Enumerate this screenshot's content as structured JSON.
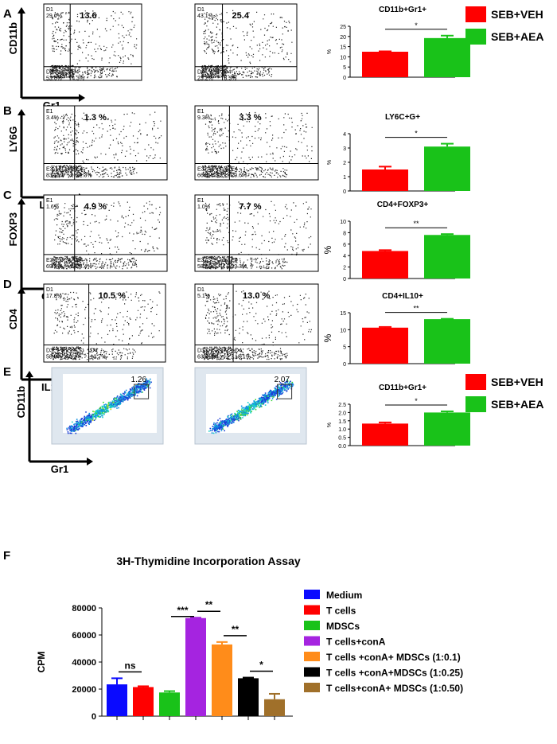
{
  "panel_letters": [
    "A",
    "B",
    "C",
    "D",
    "E",
    "F"
  ],
  "legend_top": [
    {
      "label": "SEB+VEH",
      "color": "#ff0000"
    },
    {
      "label": "SEB+AEA",
      "color": "#19c219"
    }
  ],
  "flow_rows": [
    {
      "row": "A",
      "y_marker": "CD11b",
      "x_marker": "Gr1",
      "plots": [
        {
          "ul": "D1",
          "ul_pct": "29.6%",
          "ur_pct": "13.6",
          "ll": "D3",
          "ll_pct": "53.6%",
          "lr": "D4",
          "lr_pct": "4.3%"
        },
        {
          "ul": "D1",
          "ul_pct": "43.1%",
          "ur_pct": "25.4",
          "ll": "D3",
          "ll_pct": "23.2%",
          "lr": "D4",
          "lr_pct": "8.3%"
        }
      ]
    },
    {
      "row": "B",
      "y_marker": "LY6G",
      "x_marker": "Ly6C",
      "plots": [
        {
          "ul": "E1",
          "ul_pct": "3.4%",
          "ur_pct": "1.3 %",
          "ll": "E3",
          "ll_pct": "83.1%",
          "lr": "E4",
          "lr_pct": "12.3%"
        },
        {
          "ul": "E1",
          "ul_pct": "9.3%",
          "ur_pct": "3.3 %",
          "ll": "E3",
          "ll_pct": "66.8%",
          "lr": "E4",
          "lr_pct": "20.6%"
        }
      ]
    },
    {
      "row": "C",
      "y_marker": "FOXP3",
      "x_marker": "CD4",
      "plots": [
        {
          "ul": "E1",
          "ul_pct": "1.6%",
          "ur_pct": "4.9 %",
          "ll": "E3",
          "ll_pct": "69.9%",
          "lr": "E4",
          "lr_pct": "23.4%"
        },
        {
          "ul": "E1",
          "ul_pct": "1.0%",
          "ur_pct": "7.7 %",
          "ll": "E3",
          "ll_pct": "58.0%",
          "lr": "E4",
          "lr_pct": "33.3%"
        }
      ]
    },
    {
      "row": "D",
      "y_marker": "CD4",
      "x_marker": "IL10",
      "plots": [
        {
          "ul": "D1",
          "ul_pct": "17.8%",
          "ur_pct": "10.5 %",
          "ll": "D3",
          "ll_pct": "58.9%",
          "lr": "D4",
          "lr_pct": "12.7%"
        },
        {
          "ul": "D1",
          "ul_pct": "5.1%",
          "ur_pct": "13.0 %",
          "ll": "D3",
          "ll_pct": "63.6%",
          "lr": "D4",
          "lr_pct": "18.1%"
        }
      ]
    },
    {
      "row": "E",
      "y_marker": "CD11b",
      "x_marker": "Gr1",
      "plots": [
        {
          "gate_value": "1.26"
        },
        {
          "gate_value": "2.07"
        }
      ]
    }
  ],
  "chart_data": [
    {
      "type": "bar",
      "panel": "A",
      "title": "CD11b+Gr1+",
      "ylabel": "%",
      "ylim": [
        0,
        25
      ],
      "yticks": [
        "0",
        "5",
        "10",
        "15",
        "20",
        "25"
      ],
      "categories": [
        "SEB+VEH",
        "SEB+AEA"
      ],
      "values": [
        12.5,
        19.2
      ],
      "errors": [
        0.2,
        1.2
      ],
      "significance": "*"
    },
    {
      "type": "bar",
      "panel": "B",
      "title": "LY6C+G+",
      "ylabel": "%",
      "ylim": [
        0,
        4
      ],
      "yticks": [
        "0",
        "1",
        "2",
        "3",
        "4"
      ],
      "categories": [
        "SEB+VEH",
        "SEB+AEA"
      ],
      "values": [
        1.5,
        3.1
      ],
      "errors": [
        0.2,
        0.2
      ],
      "significance": "*"
    },
    {
      "type": "bar",
      "panel": "C",
      "title": "CD4+FOXP3+",
      "ylabel": "%",
      "ylim": [
        0,
        10
      ],
      "yticks": [
        "0",
        "2",
        "4",
        "6",
        "8",
        "10"
      ],
      "categories": [
        "SEB+VEH",
        "SEB+AEA"
      ],
      "values": [
        4.8,
        7.6
      ],
      "errors": [
        0.15,
        0.15
      ],
      "significance": "**"
    },
    {
      "type": "bar",
      "panel": "D",
      "title": "CD4+IL10+",
      "ylabel": "%",
      "ylim": [
        0,
        15
      ],
      "yticks": [
        "0",
        "5",
        "10",
        "15"
      ],
      "categories": [
        "SEB+VEH",
        "SEB+AEA"
      ],
      "values": [
        10.6,
        13.1
      ],
      "errors": [
        0.2,
        0.1
      ],
      "significance": "**"
    },
    {
      "type": "bar",
      "panel": "E",
      "title": "CD11b+Gr1+",
      "ylabel": "%",
      "ylim": [
        0,
        2.5
      ],
      "yticks": [
        "0.0",
        "0.5",
        "1.0",
        "1.5",
        "2.0",
        "2.5"
      ],
      "categories": [
        "SEB+VEH",
        "SEB+AEA"
      ],
      "values": [
        1.33,
        2.0
      ],
      "errors": [
        0.07,
        0.07
      ],
      "significance": "*"
    },
    {
      "type": "bar",
      "panel": "F",
      "title": "3H-Thymidine Incorporation Assay",
      "ylabel": "CPM",
      "ylim": [
        0,
        80000
      ],
      "yticks": [
        "0",
        "20000",
        "40000",
        "60000",
        "80000"
      ],
      "categories": [
        "Medium",
        "T cells",
        "MDSCs",
        "T cells+conA",
        "T cells +conA+ MDSCs (1:0.1)",
        "T cells +conA+MDSCs (1:0.25)",
        "T cells+conA+ MDSCs (1:0.50)"
      ],
      "values": [
        23500,
        21500,
        17500,
        72500,
        53000,
        28000,
        12500
      ],
      "errors": [
        4500,
        600,
        1000,
        300,
        1800,
        500,
        4000
      ],
      "colors": [
        "#0a0aff",
        "#ff0000",
        "#19c219",
        "#a524e0",
        "#ff8c1a",
        "#000000",
        "#a0702a"
      ],
      "significance": [
        {
          "from": 0,
          "to": 1,
          "label": "ns"
        },
        {
          "from": 2,
          "to": 3,
          "label": "***"
        },
        {
          "from": 3,
          "to": 4,
          "label": "**"
        },
        {
          "from": 4,
          "to": 5,
          "label": "**"
        },
        {
          "from": 5,
          "to": 6,
          "label": "*"
        }
      ]
    }
  ],
  "colors": {
    "veh": "#ff0000",
    "aea": "#19c219"
  }
}
